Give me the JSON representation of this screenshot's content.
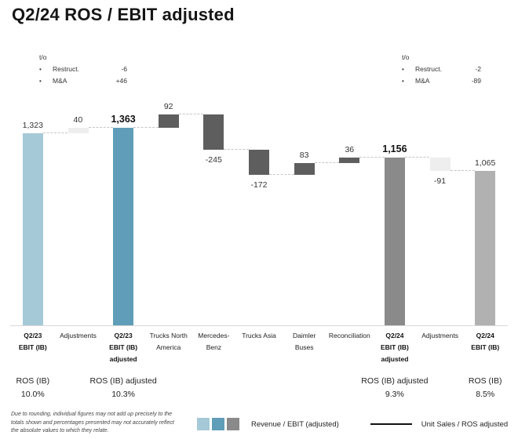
{
  "title": "Q2/24 ROS / EBIT adjusted",
  "bullet_glyph": "•",
  "annotations": {
    "left": {
      "heading": "t/o",
      "items": [
        {
          "label": "Restruct.",
          "value": "-6"
        },
        {
          "label": "M&A",
          "value": "+46"
        }
      ]
    },
    "right": {
      "heading": "t/o",
      "items": [
        {
          "label": "Restruct.",
          "value": "-2"
        },
        {
          "label": "M&A",
          "value": "-89"
        }
      ]
    }
  },
  "chart_data": {
    "type": "bar",
    "subtype": "waterfall",
    "title": "Q2/24 ROS / EBIT adjusted",
    "xlabel": "",
    "ylabel": "",
    "ylim": [
      0,
      1540
    ],
    "grid": false,
    "colors": {
      "lightBlue": "#a6c9d8",
      "teal": "#5f9db8",
      "darkGray": "#5e5e5e",
      "paleGray": "#eeeeee",
      "midGray": "#8a8a8a",
      "lightGray": "#b1b1b1"
    },
    "legend_swatch_keys": [
      "lightBlue",
      "teal",
      "midGray"
    ],
    "bars": [
      {
        "category": [
          "Q2/23",
          "EBIT (IB)"
        ],
        "label": "1,323",
        "value": 1323,
        "kind": "total",
        "color_key": "lightBlue",
        "bold": false,
        "category_bold": true,
        "ros": {
          "label": "ROS (IB)",
          "value": "10.0%"
        }
      },
      {
        "category": [
          "Adjustments"
        ],
        "label": "40",
        "value": 40,
        "kind": "delta",
        "color_key": "paleGray",
        "bold": false,
        "category_bold": false
      },
      {
        "category": [
          "Q2/23",
          "EBIT (IB)",
          "adjusted"
        ],
        "label": "1,363",
        "value": 1363,
        "kind": "total",
        "color_key": "teal",
        "bold": true,
        "category_bold": true,
        "ros": {
          "label": "ROS (IB) adjusted",
          "value": "10.3%"
        }
      },
      {
        "category": [
          "Trucks North",
          "America"
        ],
        "label": "92",
        "value": 92,
        "kind": "delta",
        "color_key": "darkGray",
        "bold": false,
        "category_bold": false
      },
      {
        "category": [
          "Mercedes-",
          "Benz"
        ],
        "label": "-245",
        "value": -245,
        "kind": "delta",
        "color_key": "darkGray",
        "bold": false,
        "category_bold": false
      },
      {
        "category": [
          "Trucks Asia"
        ],
        "label": "-172",
        "value": -172,
        "kind": "delta",
        "color_key": "darkGray",
        "bold": false,
        "category_bold": false
      },
      {
        "category": [
          "Daimler",
          "Buses"
        ],
        "label": "83",
        "value": 83,
        "kind": "delta",
        "color_key": "darkGray",
        "bold": false,
        "category_bold": false
      },
      {
        "category": [
          "Reconciliation"
        ],
        "label": "36",
        "value": 36,
        "kind": "delta",
        "color_key": "darkGray",
        "bold": false,
        "category_bold": false
      },
      {
        "category": [
          "Q2/24",
          "EBIT (IB)",
          "adjusted"
        ],
        "label": "1,156",
        "value": 1156,
        "kind": "total",
        "color_key": "midGray",
        "bold": true,
        "category_bold": true,
        "ros": {
          "label": "ROS (IB) adjusted",
          "value": "9.3%"
        }
      },
      {
        "category": [
          "Adjustments"
        ],
        "label": "-91",
        "value": -91,
        "kind": "delta",
        "color_key": "paleGray",
        "bold": false,
        "category_bold": false
      },
      {
        "category": [
          "Q2/24",
          "EBIT (IB)"
        ],
        "label": "1,065",
        "value": 1065,
        "kind": "total",
        "color_key": "lightGray",
        "bold": false,
        "category_bold": true,
        "ros": {
          "label": "ROS (IB)",
          "value": "8.5%"
        }
      }
    ]
  },
  "footer": {
    "footnote": "Due to rounding, individual figures may not add up precisely to the totals shown and percentages presented may not accurately reflect the absolute values to which they relate.",
    "legend": [
      {
        "type": "swatches",
        "label": "Revenue / EBIT (adjusted)"
      },
      {
        "type": "line",
        "label": "Unit Sales / ROS adjusted"
      }
    ]
  }
}
